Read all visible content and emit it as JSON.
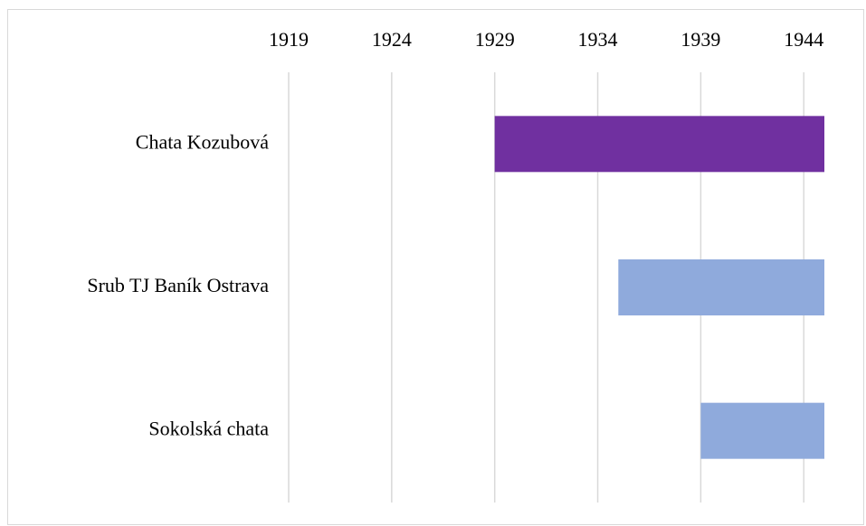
{
  "chart_data": {
    "type": "floating-bar",
    "categories": [
      "Chata Kozubová",
      "Srub TJ Baník Ostrava",
      "Sokolská chata"
    ],
    "start": [
      1929,
      1935,
      1939
    ],
    "end": [
      1945,
      1945,
      1945
    ],
    "colors": [
      "#7030a0",
      "#8faadc",
      "#8faadc"
    ],
    "xlim": [
      1919,
      1945
    ],
    "xticks": [
      1919,
      1924,
      1929,
      1934,
      1939,
      1944
    ],
    "grid": true
  }
}
